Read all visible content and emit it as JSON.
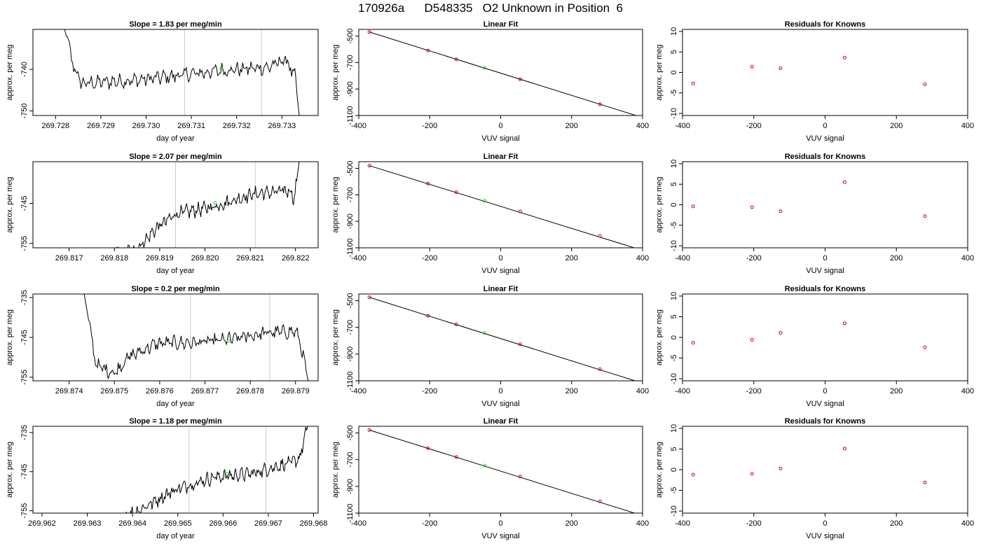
{
  "figure": {
    "title": "170926a      D548335   O2 Unknown in Position  6"
  },
  "chart_data": [
    {
      "row": 0,
      "panel": "trace",
      "type": "line",
      "title": "Slope =  1.83  per meg/min",
      "xlabel": "day of year",
      "ylabel": "approx. per meg",
      "xlim": [
        269.7275,
        269.7338
      ],
      "ylim": [
        -751.1,
        -730.4
      ],
      "x_ticks": [
        "269.728",
        "269.729",
        "269.730",
        "269.731",
        "269.732",
        "269.733"
      ],
      "y_ticks": [
        "-740",
        "-750"
      ],
      "vlines": [
        269.73085,
        269.73255
      ],
      "x_start": 269.7281,
      "x_end": 269.7334,
      "shape": [
        [
          0,
          -726
        ],
        [
          0.06,
          -740
        ],
        [
          0.09,
          -743.4
        ],
        [
          0.34,
          -742.5
        ],
        [
          0.67,
          -740.3
        ],
        [
          0.87,
          -739.5
        ],
        [
          0.94,
          -737.6
        ],
        [
          0.98,
          -742
        ],
        [
          1.0,
          -753
        ]
      ],
      "green_point": [
        269.73166,
        -739.8
      ],
      "color": "#000000",
      "green_color": "#33cc33"
    },
    {
      "row": 0,
      "panel": "fit",
      "type": "scatter",
      "title": "Linear Fit",
      "xlabel": "VUV signal",
      "ylabel": "approx. per meg",
      "xlim": [
        -400,
        400
      ],
      "ylim": [
        -1100,
        -450
      ],
      "x_ticks": [
        -400,
        -200,
        0,
        200,
        400
      ],
      "y_ticks": [
        -500,
        -700,
        -900,
        -1100
      ],
      "points": [
        [
          -370,
          -470
        ],
        [
          -205,
          -610
        ],
        [
          -125,
          -676
        ],
        [
          55,
          -827
        ],
        [
          280,
          -1016
        ]
      ],
      "green_point": [
        -45,
        -742
      ],
      "line": [
        [
          -370,
          -470
        ],
        [
          392,
          -1109
        ]
      ],
      "color": "#cc0000",
      "green_color": "#33cc33"
    },
    {
      "row": 0,
      "panel": "residuals",
      "type": "scatter",
      "title": "Residuals for Knowns",
      "xlabel": "VUV signal",
      "ylabel": "approx. per meg",
      "xlim": [
        -400,
        400
      ],
      "ylim": [
        -10.5,
        10.5
      ],
      "x_ticks": [
        -400,
        -200,
        0,
        200,
        400
      ],
      "y_ticks": [
        10,
        5,
        0,
        -5,
        -10
      ],
      "points": [
        [
          -370,
          -2.7
        ],
        [
          -205,
          1.4
        ],
        [
          -125,
          1.0
        ],
        [
          55,
          3.6
        ],
        [
          280,
          -2.9
        ]
      ],
      "color": "#cc0000"
    },
    {
      "row": 1,
      "panel": "trace",
      "type": "line",
      "title": "Slope =  2.07  per meg/min",
      "xlabel": "day of year",
      "ylabel": "approx. per meg",
      "xlim": [
        269.8162,
        269.8225
      ],
      "ylim": [
        -756.1,
        -734.6
      ],
      "x_ticks": [
        "269.817",
        "269.818",
        "269.819",
        "269.820",
        "269.821",
        "269.822"
      ],
      "y_ticks": [
        "-745",
        "-755"
      ],
      "vlines": [
        269.81935,
        269.82111
      ],
      "x_start": 269.8179,
      "x_end": 269.8221,
      "shape": [
        [
          0,
          -757
        ],
        [
          0.13,
          -757
        ],
        [
          0.25,
          -751
        ],
        [
          0.35,
          -747.6
        ],
        [
          0.55,
          -745.8
        ],
        [
          0.75,
          -742.7
        ],
        [
          0.95,
          -741.8
        ],
        [
          0.97,
          -743.9
        ],
        [
          1.0,
          -733
        ]
      ],
      "green_point": [
        269.82022,
        -744.9
      ],
      "color": "#000000",
      "green_color": "#33cc33"
    },
    {
      "row": 1,
      "panel": "fit",
      "type": "scatter",
      "title": "Linear Fit",
      "xlabel": "VUV signal",
      "ylabel": "approx. per meg",
      "xlim": [
        -400,
        400
      ],
      "ylim": [
        -1100,
        -450
      ],
      "x_ticks": [
        -400,
        -200,
        0,
        200,
        400
      ],
      "y_ticks": [
        -500,
        -700,
        -900,
        -1100
      ],
      "points": [
        [
          -370,
          -480
        ],
        [
          -205,
          -615
        ],
        [
          -125,
          -680
        ],
        [
          55,
          -825
        ],
        [
          280,
          -1010
        ]
      ],
      "green_point": [
        -45,
        -745
      ],
      "line": [
        [
          -370,
          -480
        ],
        [
          392,
          -1113
        ]
      ],
      "color": "#cc0000",
      "green_color": "#33cc33"
    },
    {
      "row": 1,
      "panel": "residuals",
      "type": "scatter",
      "title": "Residuals for Knowns",
      "xlabel": "VUV signal",
      "ylabel": "approx. per meg",
      "xlim": [
        -400,
        400
      ],
      "ylim": [
        -10.5,
        10.5
      ],
      "x_ticks": [
        -400,
        -200,
        0,
        200,
        400
      ],
      "y_ticks": [
        10,
        5,
        0,
        -5,
        -10
      ],
      "points": [
        [
          -370,
          -0.4
        ],
        [
          -205,
          -0.6
        ],
        [
          -125,
          -1.6
        ],
        [
          55,
          5.5
        ],
        [
          280,
          -2.8
        ]
      ],
      "color": "#cc0000"
    },
    {
      "row": 2,
      "panel": "trace",
      "type": "line",
      "title": "Slope =  0.2  per meg/min",
      "xlabel": "day of year",
      "ylabel": "approx. per meg",
      "xlim": [
        269.8732,
        269.8795
      ],
      "ylim": [
        -755.9,
        -734.1
      ],
      "x_ticks": [
        "269.874",
        "269.875",
        "269.876",
        "269.877",
        "269.878",
        "269.879"
      ],
      "y_ticks": [
        "-735",
        "-745",
        "-755"
      ],
      "vlines": [
        269.87668,
        269.87843
      ],
      "x_start": 269.8743,
      "x_end": 269.8793,
      "shape": [
        [
          0,
          -732
        ],
        [
          0.06,
          -752
        ],
        [
          0.14,
          -754
        ],
        [
          0.2,
          -750
        ],
        [
          0.33,
          -746.5
        ],
        [
          0.5,
          -746.3
        ],
        [
          0.65,
          -745.5
        ],
        [
          0.82,
          -743.8
        ],
        [
          0.94,
          -743.5
        ],
        [
          0.96,
          -746
        ],
        [
          1.0,
          -757
        ]
      ],
      "green_point": [
        269.87752,
        -745.9
      ],
      "color": "#000000",
      "green_color": "#33cc33"
    },
    {
      "row": 2,
      "panel": "fit",
      "type": "scatter",
      "title": "Linear Fit",
      "xlabel": "VUV signal",
      "ylabel": "approx. per meg",
      "xlim": [
        -400,
        400
      ],
      "ylim": [
        -1100,
        -450
      ],
      "x_ticks": [
        -400,
        -200,
        0,
        200,
        400
      ],
      "y_ticks": [
        -500,
        -700,
        -900,
        -1100
      ],
      "points": [
        [
          -370,
          -475
        ],
        [
          -205,
          -613
        ],
        [
          -125,
          -678
        ],
        [
          55,
          -826
        ],
        [
          280,
          -1013
        ]
      ],
      "green_point": [
        -45,
        -743
      ],
      "line": [
        [
          -370,
          -475
        ],
        [
          392,
          -1111
        ]
      ],
      "color": "#cc0000",
      "green_color": "#33cc33"
    },
    {
      "row": 2,
      "panel": "residuals",
      "type": "scatter",
      "title": "Residuals for Knowns",
      "xlabel": "VUV signal",
      "ylabel": "approx. per meg",
      "xlim": [
        -400,
        400
      ],
      "ylim": [
        -10.5,
        10.5
      ],
      "x_ticks": [
        -400,
        -200,
        0,
        200,
        400
      ],
      "y_ticks": [
        10,
        5,
        0,
        -5,
        -10
      ],
      "points": [
        [
          -370,
          -1.3
        ],
        [
          -205,
          -0.6
        ],
        [
          -125,
          1.1
        ],
        [
          55,
          3.4
        ],
        [
          280,
          -2.4
        ]
      ],
      "color": "#cc0000"
    },
    {
      "row": 3,
      "panel": "trace",
      "type": "line",
      "title": "Slope =  1.18  per meg/min",
      "xlabel": "day of year",
      "ylabel": "approx. per meg",
      "xlim": [
        269.9618,
        269.9681
      ],
      "ylim": [
        -755.6,
        -733.4
      ],
      "x_ticks": [
        "269.962",
        "269.963",
        "269.964",
        "269.965",
        "269.966",
        "269.967",
        "269.968"
      ],
      "y_ticks": [
        "-735",
        "-745",
        "-755"
      ],
      "vlines": [
        269.96525,
        269.96695
      ],
      "x_start": 269.9637,
      "x_end": 269.9679,
      "shape": [
        [
          0,
          -757
        ],
        [
          0.1,
          -755
        ],
        [
          0.3,
          -749.5
        ],
        [
          0.5,
          -746.4
        ],
        [
          0.7,
          -745.5
        ],
        [
          0.85,
          -743.4
        ],
        [
          0.92,
          -742.5
        ],
        [
          0.95,
          -741.5
        ],
        [
          1.0,
          -732
        ]
      ],
      "green_point": [
        269.96609,
        -745.5
      ],
      "color": "#000000",
      "green_color": "#33cc33"
    },
    {
      "row": 3,
      "panel": "fit",
      "type": "scatter",
      "title": "Linear Fit",
      "xlabel": "VUV signal",
      "ylabel": "approx. per meg",
      "xlim": [
        -400,
        400
      ],
      "ylim": [
        -1100,
        -450
      ],
      "x_ticks": [
        -400,
        -200,
        0,
        200,
        400
      ],
      "y_ticks": [
        -500,
        -700,
        -900,
        -1100
      ],
      "points": [
        [
          -370,
          -478
        ],
        [
          -205,
          -614
        ],
        [
          -125,
          -680
        ],
        [
          55,
          -826
        ],
        [
          280,
          -1012
        ]
      ],
      "green_point": [
        -45,
        -744
      ],
      "line": [
        [
          -370,
          -478
        ],
        [
          392,
          -1112
        ]
      ],
      "color": "#cc0000",
      "green_color": "#33cc33"
    },
    {
      "row": 3,
      "panel": "residuals",
      "type": "scatter",
      "title": "Residuals for Knowns",
      "xlabel": "VUV signal",
      "ylabel": "approx. per meg",
      "xlim": [
        -400,
        400
      ],
      "ylim": [
        -10.5,
        10.5
      ],
      "x_ticks": [
        -400,
        -200,
        0,
        200,
        400
      ],
      "y_ticks": [
        10,
        5,
        0,
        -5,
        -10
      ],
      "points": [
        [
          -370,
          -1.2
        ],
        [
          -205,
          -1.0
        ],
        [
          -125,
          0.3
        ],
        [
          55,
          5.1
        ],
        [
          280,
          -3.1
        ]
      ],
      "color": "#cc0000"
    }
  ]
}
